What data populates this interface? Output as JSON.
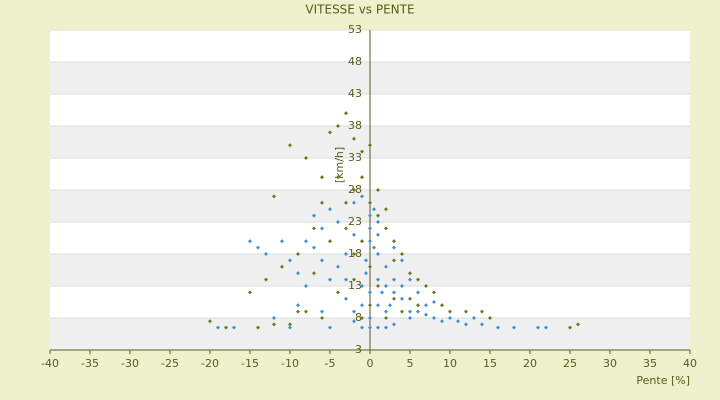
{
  "chart_data": {
    "type": "scatter",
    "title": "VITESSE vs PENTE",
    "x_label": "Pente [%]",
    "y_label": "[km/h]",
    "xlim": [
      -40,
      40
    ],
    "xticks": [
      -40,
      -35,
      -30,
      -25,
      -20,
      -15,
      -10,
      -5,
      0,
      5,
      10,
      15,
      20,
      25,
      30,
      35,
      40
    ],
    "ylim": [
      3,
      53
    ],
    "yticks": [
      3,
      8,
      13,
      18,
      23,
      28,
      33,
      38,
      43,
      48,
      53
    ],
    "grid": true,
    "series": [
      {
        "color": "#3d8fd9",
        "x": [
          -1,
          0,
          1,
          2,
          -2,
          0.5,
          -0.5,
          1.5,
          3,
          2.5,
          4,
          5,
          6,
          7,
          8,
          9,
          10,
          12,
          14,
          16,
          18,
          21,
          22,
          -3,
          -4,
          -5,
          -6,
          -7,
          -8,
          -9,
          -10,
          -11,
          -13,
          -14,
          -15,
          -12,
          -10,
          -5,
          -1,
          0,
          1,
          2,
          3,
          -2,
          -1,
          0,
          1,
          3,
          4,
          5,
          6,
          7,
          8,
          -3,
          -2,
          -1,
          0,
          1,
          -4,
          -5,
          -6,
          -7,
          0,
          0.5,
          1,
          -0.5,
          2,
          3,
          4,
          -1,
          -3,
          13,
          11,
          -17,
          -19,
          -8,
          -9,
          -6,
          5,
          2,
          1,
          0,
          -2
        ],
        "values": [
          20,
          22,
          18,
          16,
          21,
          25,
          15,
          12,
          14,
          10,
          11,
          9,
          9,
          8.5,
          8,
          7.5,
          8,
          7,
          7,
          6.5,
          6.5,
          6.5,
          6.5,
          18,
          16,
          14,
          17,
          19,
          13,
          15,
          17,
          20,
          18,
          19,
          20,
          8,
          6.5,
          6.5,
          6.5,
          6.5,
          6.5,
          6.5,
          7,
          26,
          27,
          24,
          23,
          19,
          17,
          14,
          12,
          10,
          10.5,
          11,
          9,
          10,
          12,
          14,
          23,
          25,
          22,
          24,
          20,
          19,
          21,
          17,
          13,
          12,
          13,
          13,
          14,
          8,
          7.5,
          6.5,
          6.5,
          20,
          10,
          9,
          8,
          9,
          10,
          8,
          7.5
        ]
      },
      {
        "color": "#6b7a1a",
        "x": [
          -5,
          -4,
          -3,
          -2,
          -1,
          -10,
          -8,
          -12,
          -6,
          -4,
          -2,
          0,
          1,
          2,
          3,
          4,
          5,
          6,
          8,
          10,
          12,
          14,
          15,
          -1,
          -2,
          -3,
          -5,
          -7,
          -9,
          -11,
          -13,
          -15,
          -12,
          -14,
          -20,
          -18,
          -6,
          -8,
          -4,
          -2,
          0,
          2,
          4,
          6,
          0,
          1,
          3,
          -1,
          7,
          9,
          25,
          26,
          -3,
          -1,
          0,
          1,
          2,
          -6,
          -7,
          -9,
          -10,
          5,
          3
        ],
        "values": [
          37,
          38,
          40,
          36,
          34,
          35,
          33,
          27,
          30,
          30,
          28,
          26,
          24,
          22,
          20,
          18,
          15,
          14,
          12,
          9,
          9,
          9,
          8,
          20,
          18,
          22,
          20,
          22,
          18,
          16,
          14,
          12,
          7,
          6.5,
          7.5,
          6.5,
          8,
          9,
          12,
          14,
          10,
          8,
          9,
          10,
          16,
          13,
          11,
          8,
          13,
          10,
          6.5,
          7,
          26,
          30,
          35,
          28,
          25,
          26,
          15,
          9,
          7,
          11,
          17
        ]
      }
    ]
  }
}
